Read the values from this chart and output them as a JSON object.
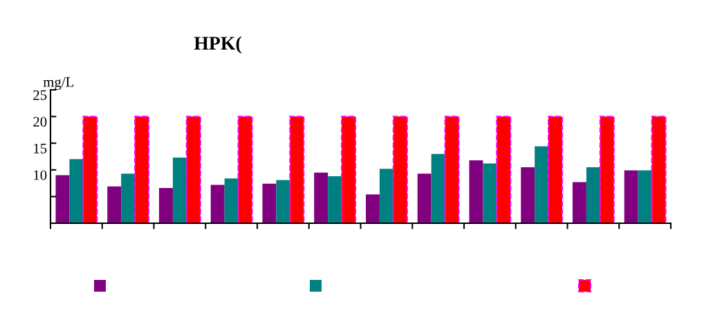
{
  "chart_data": {
    "type": "bar",
    "title": "HPK(",
    "ylabel": "mg/L",
    "categories": [
      null,
      null,
      null,
      null,
      null,
      null,
      null,
      null,
      null,
      null,
      null,
      null
    ],
    "series": [
      {
        "color": "#800080",
        "values": [
          9.0,
          6.9,
          6.6,
          7.2,
          7.4,
          9.5,
          5.4,
          9.3,
          11.8,
          10.5,
          7.7,
          9.9
        ]
      },
      {
        "color": "#008080",
        "values": [
          12.0,
          9.3,
          12.3,
          8.4,
          8.1,
          8.8,
          10.2,
          13.0,
          11.2,
          14.4,
          10.5,
          9.9
        ]
      },
      {
        "color": "#ff0000",
        "line_style": "dashed",
        "values": [
          20,
          20,
          20,
          20,
          20,
          20,
          20,
          20,
          20,
          20,
          20,
          20
        ]
      }
    ],
    "ylim": [
      0,
      25
    ],
    "yticks": [
      {
        "value": 0,
        "label": null
      },
      {
        "value": 5,
        "label": null
      },
      10,
      15,
      20,
      25
    ],
    "grid": false
  }
}
